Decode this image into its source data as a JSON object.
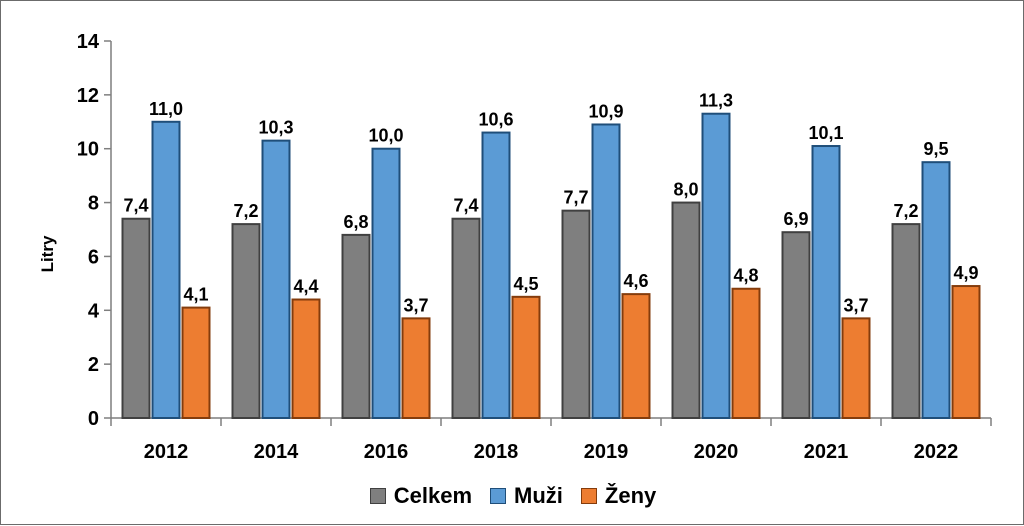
{
  "chart_data": {
    "type": "bar",
    "categories": [
      "2012",
      "2014",
      "2016",
      "2018",
      "2019",
      "2020",
      "2021",
      "2022"
    ],
    "series": [
      {
        "name": "Celkem",
        "values": [
          7.4,
          7.2,
          6.8,
          7.4,
          7.7,
          8.0,
          6.9,
          7.2
        ],
        "labels": [
          "7,4",
          "7,2",
          "6,8",
          "7,4",
          "7,7",
          "8,0",
          "6,9",
          "7,2"
        ],
        "color": "#7f7f7f",
        "stroke": "#404040"
      },
      {
        "name": "Muži",
        "values": [
          11.0,
          10.3,
          10.0,
          10.6,
          10.9,
          11.3,
          10.1,
          9.5
        ],
        "labels": [
          "11,0",
          "10,3",
          "10,0",
          "10,6",
          "10,9",
          "11,3",
          "10,1",
          "9,5"
        ],
        "color": "#5b9bd5",
        "stroke": "#1f4e79"
      },
      {
        "name": "Ženy",
        "values": [
          4.1,
          4.4,
          3.7,
          4.5,
          4.6,
          4.8,
          3.7,
          4.9
        ],
        "labels": [
          "4,1",
          "4,4",
          "3,7",
          "4,5",
          "4,6",
          "4,8",
          "3,7",
          "4,9"
        ],
        "color": "#ed7d31",
        "stroke": "#843c0c"
      }
    ],
    "ylabel": "Litry",
    "ylim": [
      0,
      14
    ],
    "yticks": [
      0,
      2,
      4,
      6,
      8,
      10,
      12,
      14
    ],
    "grid": false,
    "legend_position": "bottom"
  }
}
